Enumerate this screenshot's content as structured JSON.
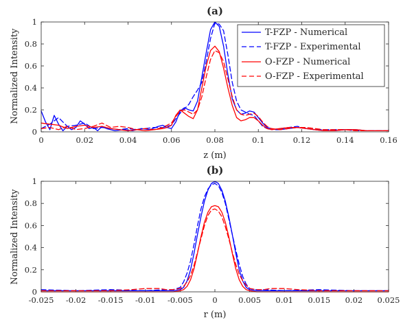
{
  "colors": {
    "blue": "#0000ff",
    "red": "#ff0000",
    "axis": "#262626",
    "background": "#ffffff"
  },
  "chart_data": [
    {
      "type": "line",
      "title": "(a)",
      "xlabel": "z (m)",
      "ylabel": "Normalized Intensity",
      "xlim": [
        0,
        0.16
      ],
      "ylim": [
        0,
        1
      ],
      "xticks": [
        0,
        0.02,
        0.04,
        0.06,
        0.08,
        0.1,
        0.12,
        0.14,
        0.16
      ],
      "xtick_labels": [
        "0",
        "0.02",
        "0.04",
        "0.06",
        "0.08",
        "0.1",
        "0.12",
        "0.14",
        "0.16"
      ],
      "yticks": [
        0,
        0.2,
        0.4,
        0.6,
        0.8,
        1
      ],
      "ytick_labels": [
        "0",
        "0.2",
        "0.4",
        "0.6",
        "0.8",
        "1"
      ],
      "grid": false,
      "legend_position": "top-right",
      "series": [
        {
          "name": "T-FZP - Numerical",
          "color": "#0000ff",
          "style": "solid",
          "x": [
            0,
            0.002,
            0.004,
            0.006,
            0.008,
            0.01,
            0.012,
            0.014,
            0.016,
            0.018,
            0.02,
            0.022,
            0.024,
            0.026,
            0.028,
            0.03,
            0.034,
            0.038,
            0.042,
            0.046,
            0.05,
            0.054,
            0.056,
            0.058,
            0.06,
            0.062,
            0.064,
            0.066,
            0.068,
            0.07,
            0.072,
            0.074,
            0.076,
            0.078,
            0.08,
            0.082,
            0.084,
            0.086,
            0.088,
            0.09,
            0.092,
            0.094,
            0.096,
            0.098,
            0.1,
            0.102,
            0.104,
            0.106,
            0.108,
            0.11,
            0.114,
            0.118,
            0.122,
            0.126,
            0.13,
            0.135,
            0.14,
            0.145,
            0.15,
            0.155,
            0.16
          ],
          "y": [
            0.19,
            0.09,
            0.02,
            0.15,
            0.07,
            0.01,
            0.05,
            0.02,
            0.04,
            0.1,
            0.07,
            0.03,
            0.04,
            0.01,
            0.05,
            0.03,
            0.01,
            0.02,
            0.01,
            0.03,
            0.02,
            0.05,
            0.06,
            0.04,
            0.03,
            0.09,
            0.19,
            0.22,
            0.2,
            0.19,
            0.28,
            0.5,
            0.72,
            0.93,
            1.0,
            0.96,
            0.78,
            0.52,
            0.3,
            0.2,
            0.16,
            0.17,
            0.19,
            0.18,
            0.13,
            0.08,
            0.04,
            0.03,
            0.02,
            0.02,
            0.03,
            0.04,
            0.03,
            0.02,
            0.01,
            0.01,
            0.02,
            0.02,
            0.01,
            0.01,
            0.01
          ]
        },
        {
          "name": "T-FZP - Experimental",
          "color": "#0000ff",
          "style": "dashed",
          "x": [
            0,
            0.004,
            0.008,
            0.012,
            0.016,
            0.02,
            0.024,
            0.028,
            0.032,
            0.036,
            0.04,
            0.044,
            0.048,
            0.052,
            0.056,
            0.06,
            0.062,
            0.064,
            0.066,
            0.068,
            0.07,
            0.072,
            0.074,
            0.076,
            0.078,
            0.08,
            0.082,
            0.084,
            0.086,
            0.088,
            0.09,
            0.092,
            0.094,
            0.096,
            0.098,
            0.1,
            0.102,
            0.104,
            0.106,
            0.11,
            0.114,
            0.118,
            0.122,
            0.126,
            0.13,
            0.135,
            0.14,
            0.145,
            0.15,
            0.155,
            0.16
          ],
          "y": [
            0.03,
            0.07,
            0.13,
            0.05,
            0.06,
            0.08,
            0.03,
            0.04,
            0.03,
            0.02,
            0.03,
            0.02,
            0.03,
            0.04,
            0.04,
            0.06,
            0.12,
            0.17,
            0.21,
            0.25,
            0.32,
            0.38,
            0.45,
            0.64,
            0.85,
            0.99,
            0.98,
            0.92,
            0.7,
            0.45,
            0.28,
            0.2,
            0.18,
            0.16,
            0.15,
            0.1,
            0.05,
            0.03,
            0.02,
            0.03,
            0.04,
            0.05,
            0.03,
            0.02,
            0.02,
            0.02,
            0.02,
            0.01,
            0.01,
            0.01,
            0.01
          ]
        },
        {
          "name": "O-FZP - Numerical",
          "color": "#ff0000",
          "style": "solid",
          "x": [
            0,
            0.004,
            0.008,
            0.012,
            0.016,
            0.02,
            0.024,
            0.028,
            0.032,
            0.036,
            0.04,
            0.044,
            0.048,
            0.052,
            0.056,
            0.058,
            0.06,
            0.062,
            0.064,
            0.066,
            0.068,
            0.07,
            0.072,
            0.074,
            0.076,
            0.078,
            0.08,
            0.082,
            0.084,
            0.086,
            0.088,
            0.09,
            0.092,
            0.094,
            0.096,
            0.098,
            0.1,
            0.102,
            0.104,
            0.106,
            0.11,
            0.114,
            0.118,
            0.122,
            0.126,
            0.13,
            0.135,
            0.14,
            0.145,
            0.15,
            0.155,
            0.16
          ],
          "y": [
            0.08,
            0.07,
            0.06,
            0.03,
            0.05,
            0.06,
            0.04,
            0.05,
            0.03,
            0.02,
            0.01,
            0.02,
            0.01,
            0.02,
            0.03,
            0.04,
            0.06,
            0.15,
            0.2,
            0.17,
            0.14,
            0.12,
            0.2,
            0.4,
            0.6,
            0.74,
            0.78,
            0.73,
            0.58,
            0.4,
            0.24,
            0.13,
            0.1,
            0.11,
            0.13,
            0.13,
            0.1,
            0.06,
            0.03,
            0.02,
            0.03,
            0.04,
            0.04,
            0.03,
            0.02,
            0.01,
            0.01,
            0.02,
            0.02,
            0.01,
            0.01,
            0.01
          ]
        },
        {
          "name": "O-FZP - Experimental",
          "color": "#ff0000",
          "style": "dashed",
          "x": [
            0,
            0.004,
            0.008,
            0.012,
            0.016,
            0.02,
            0.024,
            0.028,
            0.032,
            0.036,
            0.04,
            0.044,
            0.048,
            0.052,
            0.056,
            0.06,
            0.062,
            0.064,
            0.066,
            0.068,
            0.07,
            0.072,
            0.074,
            0.076,
            0.078,
            0.08,
            0.082,
            0.084,
            0.086,
            0.088,
            0.09,
            0.092,
            0.094,
            0.096,
            0.098,
            0.1,
            0.102,
            0.104,
            0.106,
            0.11,
            0.114,
            0.118,
            0.122,
            0.126,
            0.13,
            0.135,
            0.14,
            0.145,
            0.15,
            0.155,
            0.16
          ],
          "y": [
            0.03,
            0.04,
            0.02,
            0.05,
            0.02,
            0.03,
            0.05,
            0.08,
            0.04,
            0.05,
            0.04,
            0.02,
            0.03,
            0.02,
            0.04,
            0.08,
            0.14,
            0.19,
            0.2,
            0.18,
            0.16,
            0.2,
            0.32,
            0.5,
            0.66,
            0.74,
            0.72,
            0.64,
            0.48,
            0.32,
            0.2,
            0.16,
            0.15,
            0.16,
            0.17,
            0.14,
            0.09,
            0.05,
            0.03,
            0.02,
            0.03,
            0.04,
            0.04,
            0.03,
            0.02,
            0.02,
            0.02,
            0.01,
            0.01,
            0.01,
            0.01
          ]
        }
      ]
    },
    {
      "type": "line",
      "title": "(b)",
      "xlabel": "r (m)",
      "ylabel": "Normalized Intensity",
      "xlim": [
        -0.025,
        0.025
      ],
      "ylim": [
        0,
        1
      ],
      "xticks": [
        -0.025,
        -0.02,
        -0.015,
        -0.01,
        -0.005,
        0,
        0.005,
        0.01,
        0.015,
        0.02,
        0.025
      ],
      "xtick_labels": [
        "-0.025",
        "-0.02",
        "-0.015",
        "-0.01",
        "-0.005",
        "0",
        "0.005",
        "0.01",
        "0.015",
        "0.02",
        "0.025"
      ],
      "yticks": [
        0,
        0.2,
        0.4,
        0.6,
        0.8,
        1
      ],
      "ytick_labels": [
        "0",
        "0.2",
        "0.4",
        "0.6",
        "0.8",
        "1"
      ],
      "grid": false,
      "series": [
        {
          "name": "T-FZP - Numerical",
          "color": "#0000ff",
          "style": "solid",
          "x": [
            -0.025,
            -0.02,
            -0.015,
            -0.01,
            -0.007,
            -0.006,
            -0.005,
            -0.0045,
            -0.004,
            -0.0035,
            -0.003,
            -0.0025,
            -0.002,
            -0.0015,
            -0.001,
            -0.0005,
            0,
            0.0005,
            0.001,
            0.0015,
            0.002,
            0.0025,
            0.003,
            0.0035,
            0.004,
            0.0045,
            0.005,
            0.006,
            0.007,
            0.01,
            0.015,
            0.02,
            0.025
          ],
          "y": [
            0.01,
            0.01,
            0.01,
            0.01,
            0.01,
            0.01,
            0.02,
            0.04,
            0.1,
            0.2,
            0.35,
            0.52,
            0.68,
            0.82,
            0.92,
            0.98,
            1.0,
            0.98,
            0.92,
            0.82,
            0.68,
            0.52,
            0.35,
            0.2,
            0.1,
            0.04,
            0.02,
            0.01,
            0.01,
            0.01,
            0.01,
            0.01,
            0.01
          ]
        },
        {
          "name": "T-FZP - Experimental",
          "color": "#0000ff",
          "style": "dashed",
          "x": [
            -0.025,
            -0.02,
            -0.015,
            -0.01,
            -0.007,
            -0.006,
            -0.005,
            -0.0045,
            -0.004,
            -0.0035,
            -0.003,
            -0.0025,
            -0.002,
            -0.0015,
            -0.001,
            -0.0005,
            0,
            0.0005,
            0.001,
            0.0015,
            0.002,
            0.0025,
            0.003,
            0.0035,
            0.004,
            0.0045,
            0.005,
            0.006,
            0.007,
            0.01,
            0.015,
            0.02,
            0.025
          ],
          "y": [
            0.02,
            0.01,
            0.02,
            0.01,
            0.02,
            0.02,
            0.04,
            0.09,
            0.17,
            0.28,
            0.43,
            0.6,
            0.75,
            0.86,
            0.93,
            0.97,
            0.98,
            0.96,
            0.9,
            0.8,
            0.66,
            0.52,
            0.38,
            0.25,
            0.14,
            0.07,
            0.03,
            0.02,
            0.02,
            0.01,
            0.02,
            0.01,
            0.01
          ]
        },
        {
          "name": "O-FZP - Numerical",
          "color": "#ff0000",
          "style": "solid",
          "x": [
            -0.025,
            -0.02,
            -0.015,
            -0.01,
            -0.007,
            -0.006,
            -0.005,
            -0.0045,
            -0.004,
            -0.0035,
            -0.003,
            -0.0025,
            -0.002,
            -0.0015,
            -0.001,
            -0.0005,
            0,
            0.0005,
            0.001,
            0.0015,
            0.002,
            0.0025,
            0.003,
            0.0035,
            0.004,
            0.0045,
            0.005,
            0.006,
            0.007,
            0.01,
            0.015,
            0.02,
            0.025
          ],
          "y": [
            0.0,
            0.0,
            0.0,
            0.0,
            0.0,
            0.0,
            0.01,
            0.02,
            0.05,
            0.11,
            0.21,
            0.35,
            0.5,
            0.63,
            0.72,
            0.77,
            0.78,
            0.77,
            0.72,
            0.63,
            0.5,
            0.35,
            0.21,
            0.11,
            0.05,
            0.02,
            0.01,
            0.0,
            0.0,
            0.0,
            0.0,
            0.0,
            0.0
          ]
        },
        {
          "name": "O-FZP - Experimental",
          "color": "#ff0000",
          "style": "dashed",
          "x": [
            -0.025,
            -0.02,
            -0.015,
            -0.012,
            -0.01,
            -0.009,
            -0.008,
            -0.007,
            -0.006,
            -0.005,
            -0.0045,
            -0.004,
            -0.0035,
            -0.003,
            -0.0025,
            -0.002,
            -0.0015,
            -0.001,
            -0.0005,
            0,
            0.0005,
            0.001,
            0.0015,
            0.002,
            0.0025,
            0.003,
            0.0035,
            0.004,
            0.0045,
            0.005,
            0.006,
            0.007,
            0.008,
            0.01,
            0.012,
            0.015,
            0.02,
            0.025
          ],
          "y": [
            0.01,
            0.01,
            0.01,
            0.02,
            0.03,
            0.03,
            0.03,
            0.02,
            0.02,
            0.03,
            0.05,
            0.09,
            0.15,
            0.24,
            0.36,
            0.48,
            0.6,
            0.69,
            0.74,
            0.75,
            0.73,
            0.68,
            0.59,
            0.48,
            0.36,
            0.25,
            0.16,
            0.1,
            0.06,
            0.03,
            0.02,
            0.02,
            0.03,
            0.03,
            0.02,
            0.01,
            0.01,
            0.01
          ]
        }
      ]
    }
  ]
}
